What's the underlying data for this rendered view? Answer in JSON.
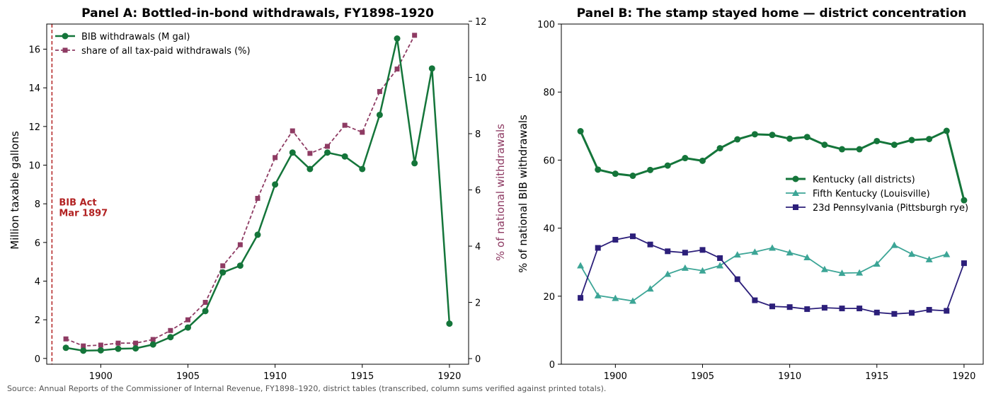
{
  "colors": {
    "green": "#14753a",
    "purple": "#8e3b63",
    "teal": "#3ca596",
    "navy": "#2c1f7a",
    "annotation": "#b22222",
    "axis": "#000000"
  },
  "source": "Source: Annual Reports of the Commissioner of Internal Revenue, FY1898–1920, district tables (transcribed, column sums verified against printed totals).",
  "chart_data": [
    {
      "type": "line",
      "title": "Panel A: Bottled-in-bond withdrawals, FY1898–1920",
      "xlabel": "",
      "ylabel": "Million taxable gallons",
      "ylabel_right": "% of national withdrawals",
      "xlim": [
        1896.9,
        1921.1
      ],
      "ylim": [
        -0.3,
        17.3
      ],
      "ylim_right": [
        -0.2,
        11.9
      ],
      "xticks": [
        1900,
        1905,
        1910,
        1915,
        1920
      ],
      "yticks": [
        0,
        2,
        4,
        6,
        8,
        10,
        12,
        14,
        16
      ],
      "yticks_right": [
        0,
        2,
        4,
        6,
        8,
        10,
        12
      ],
      "grid": false,
      "legend": "top-left",
      "annotation": {
        "x": 1897.2,
        "lines": [
          "BIB Act",
          "Mar 1897"
        ],
        "y": 7.8
      },
      "series": [
        {
          "name": "BIB withdrawals (M gal)",
          "axis": "left",
          "style": "solid-circle",
          "x": [
            1898,
            1899,
            1900,
            1901,
            1902,
            1903,
            1904,
            1905,
            1906,
            1907,
            1908,
            1909,
            1910,
            1911,
            1912,
            1913,
            1914,
            1915,
            1916,
            1917,
            1918,
            1919,
            1920
          ],
          "values": [
            0.55,
            0.4,
            0.42,
            0.5,
            0.52,
            0.72,
            1.1,
            1.6,
            2.45,
            4.45,
            4.8,
            6.4,
            9.0,
            10.65,
            9.8,
            10.65,
            10.45,
            9.8,
            12.6,
            16.55,
            10.1,
            15.0,
            1.8
          ]
        },
        {
          "name": "share of all tax-paid withdrawals (%)",
          "axis": "right",
          "style": "dashed-square",
          "x": [
            1898,
            1899,
            1900,
            1901,
            1902,
            1903,
            1904,
            1905,
            1906,
            1907,
            1908,
            1909,
            1910,
            1911,
            1912,
            1913,
            1914,
            1915,
            1916,
            1917,
            1918
          ],
          "values": [
            0.7,
            0.45,
            0.48,
            0.55,
            0.55,
            0.68,
            1.0,
            1.38,
            2.0,
            3.3,
            4.05,
            5.7,
            7.15,
            8.1,
            7.3,
            7.55,
            8.3,
            8.05,
            9.5,
            10.3,
            11.5
          ]
        }
      ]
    },
    {
      "type": "line",
      "title": "Panel B: The stamp stayed home — district concentration",
      "xlabel": "",
      "ylabel": "% of national BIB withdrawals",
      "xlim": [
        1896.9,
        1921.1
      ],
      "ylim": [
        0,
        100
      ],
      "xticks": [
        1900,
        1905,
        1910,
        1915,
        1920
      ],
      "yticks": [
        0,
        20,
        40,
        60,
        80,
        100
      ],
      "grid": false,
      "legend": "center-right",
      "series": [
        {
          "name": "Kentucky (all districts)",
          "style": "thick-circle",
          "x": [
            1898,
            1899,
            1900,
            1901,
            1902,
            1903,
            1904,
            1905,
            1906,
            1907,
            1908,
            1909,
            1910,
            1911,
            1912,
            1913,
            1914,
            1915,
            1916,
            1917,
            1918,
            1919,
            1920
          ],
          "values": [
            68.5,
            57.2,
            56.0,
            55.4,
            57.1,
            58.4,
            60.6,
            59.8,
            63.5,
            66.1,
            67.6,
            67.4,
            66.3,
            66.8,
            64.5,
            63.2,
            63.2,
            65.6,
            64.5,
            65.9,
            66.2,
            68.6,
            48.2
          ]
        },
        {
          "name": "Fifth Kentucky (Louisville)",
          "style": "triangle",
          "x": [
            1898,
            1899,
            1900,
            1901,
            1902,
            1903,
            1904,
            1905,
            1906,
            1907,
            1908,
            1909,
            1910,
            1911,
            1912,
            1913,
            1914,
            1915,
            1916,
            1917,
            1918,
            1919
          ],
          "values": [
            29.0,
            20.2,
            19.4,
            18.6,
            22.2,
            26.5,
            28.3,
            27.5,
            29.0,
            32.2,
            33.0,
            34.2,
            32.8,
            31.4,
            27.9,
            26.8,
            26.9,
            29.5,
            35.0,
            32.4,
            30.8,
            32.3
          ]
        },
        {
          "name": "23d Pennsylvania (Pittsburgh rye)",
          "style": "square",
          "x": [
            1898,
            1899,
            1900,
            1901,
            1902,
            1903,
            1904,
            1905,
            1906,
            1907,
            1908,
            1909,
            1910,
            1911,
            1912,
            1913,
            1914,
            1915,
            1916,
            1917,
            1918,
            1919,
            1920
          ],
          "values": [
            19.5,
            34.2,
            36.6,
            37.6,
            35.2,
            33.2,
            32.8,
            33.6,
            31.2,
            25.0,
            18.8,
            17.0,
            16.8,
            16.2,
            16.6,
            16.4,
            16.4,
            15.2,
            14.8,
            15.1,
            16.0,
            15.7,
            29.7
          ]
        }
      ]
    }
  ]
}
